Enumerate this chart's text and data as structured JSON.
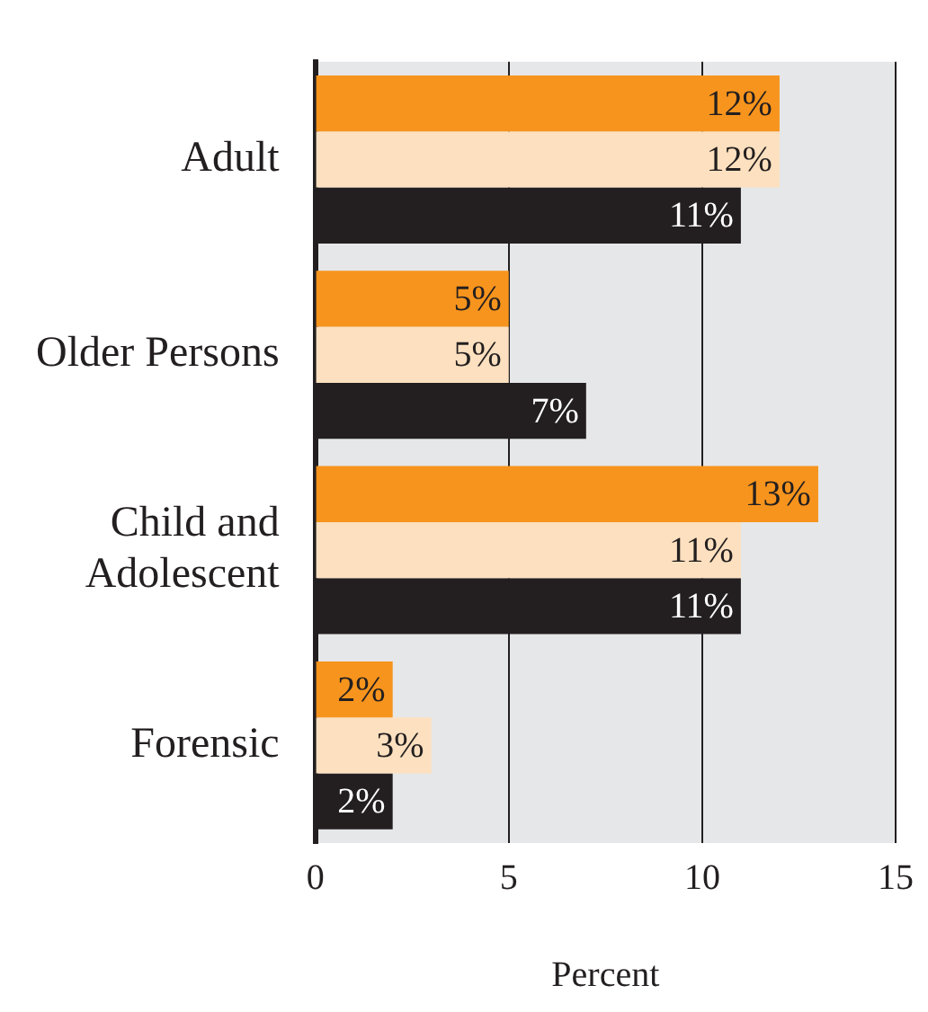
{
  "chart_data": {
    "type": "bar",
    "orientation": "horizontal",
    "xlabel": "Percent",
    "categories": [
      "Adult",
      "Older Persons",
      "Child and Adolescent",
      "Forensic"
    ],
    "series": [
      {
        "color": "#f7941d",
        "values": [
          12,
          5,
          13,
          2
        ],
        "value_labels": [
          "12%",
          "5%",
          "13%",
          "2%"
        ]
      },
      {
        "color": "#fde0bf",
        "values": [
          12,
          5,
          11,
          3
        ],
        "value_labels": [
          "12%",
          "5%",
          "11%",
          "3%"
        ]
      },
      {
        "color": "#231f20",
        "values": [
          11,
          7,
          11,
          2
        ],
        "value_labels": [
          "11%",
          "7%",
          "11%",
          "2%"
        ]
      }
    ],
    "xlim": [
      0,
      15
    ],
    "xticks": [
      0,
      5,
      10,
      15
    ],
    "grid": "x",
    "legend": false
  }
}
